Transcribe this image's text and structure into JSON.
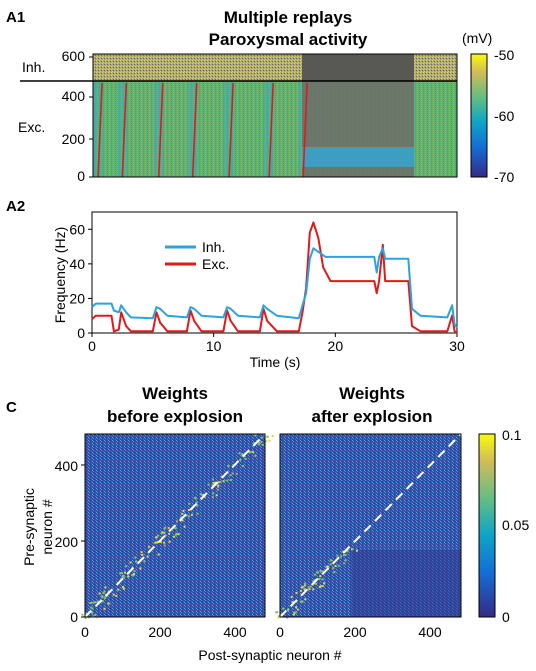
{
  "panelA1": {
    "label": "A1",
    "title1": "Multiple replays",
    "title2": "Paroxysmal activity",
    "inh_label": "Inh.",
    "exc_label": "Exc.",
    "y_ticks": [
      "0",
      "200",
      "400",
      "600"
    ],
    "colorbar": {
      "unit": "(mV)",
      "ticks": [
        "-50",
        "-60",
        "-70"
      ]
    }
  },
  "panelA2": {
    "label": "A2",
    "y_label": "Frequency (Hz)",
    "x_label": "Time (s)",
    "x_ticks": [
      "0",
      "10",
      "20",
      "30"
    ],
    "y_ticks": [
      "0",
      "20",
      "40",
      "60"
    ],
    "legend": [
      "Inh.",
      "Exc."
    ]
  },
  "panelC": {
    "label": "C",
    "left_title1": "Weights",
    "left_title2": "before explosion",
    "right_title1": "Weights",
    "right_title2": "after explosion",
    "y_label1": "Pre-synaptic",
    "y_label2": "neuron #",
    "x_label": "Post-synaptic neuron #",
    "y_ticks": [
      "0",
      "200",
      "400"
    ],
    "x_ticks": [
      "0",
      "200",
      "400"
    ],
    "colorbar_ticks": [
      "0.1",
      "0.05",
      "0"
    ]
  },
  "colors": {
    "inh": "#2aa3e0",
    "exc": "#e01a1a"
  },
  "chart_data": [
    {
      "type": "heatmap",
      "panel": "A1",
      "title": "Multiple replays Paroxysmal activity",
      "xlabel": "",
      "ylabel": "",
      "xlim": [
        0,
        30
      ],
      "ylim": [
        0,
        600
      ],
      "color_range_mV": [
        -70,
        -50
      ],
      "exc_burst_times_s": [
        0.5,
        2.5,
        5.5,
        8.3,
        11.3,
        14.6,
        17.4
      ],
      "paroxysm_s": [
        17.5,
        26.5
      ],
      "colormap": "parula"
    },
    {
      "type": "line",
      "panel": "A2",
      "xlabel": "Time (s)",
      "ylabel": "Frequency (Hz)",
      "xlim": [
        0,
        30
      ],
      "ylim": [
        0,
        70
      ],
      "series": [
        {
          "name": "Inh.",
          "color": "#2aa3e0",
          "points": [
            [
              0,
              15
            ],
            [
              0.3,
              17
            ],
            [
              1.6,
              17
            ],
            [
              1.8,
              13
            ],
            [
              2.2,
              12
            ],
            [
              2.4,
              16
            ],
            [
              2.8,
              12
            ],
            [
              3.2,
              9
            ],
            [
              5.0,
              8.5
            ],
            [
              5.3,
              15
            ],
            [
              5.6,
              14
            ],
            [
              6.2,
              10
            ],
            [
              7.8,
              9
            ],
            [
              8.1,
              15
            ],
            [
              8.4,
              14
            ],
            [
              9.0,
              10
            ],
            [
              10.8,
              9
            ],
            [
              11.1,
              15
            ],
            [
              11.4,
              14
            ],
            [
              12.0,
              10
            ],
            [
              13.8,
              9
            ],
            [
              14.1,
              16
            ],
            [
              14.4,
              14
            ],
            [
              15.2,
              10
            ],
            [
              17.0,
              8.5
            ],
            [
              17.3,
              16
            ],
            [
              17.6,
              23
            ],
            [
              17.9,
              43
            ],
            [
              18.2,
              49
            ],
            [
              18.6,
              47
            ],
            [
              19.2,
              44
            ],
            [
              20.0,
              44
            ],
            [
              23.2,
              44
            ],
            [
              23.4,
              35
            ],
            [
              23.6,
              44
            ],
            [
              23.9,
              49
            ],
            [
              24.1,
              43
            ],
            [
              26.0,
              43
            ],
            [
              26.3,
              14
            ],
            [
              27.0,
              10
            ],
            [
              29.2,
              9
            ],
            [
              29.6,
              16
            ],
            [
              29.8,
              5
            ],
            [
              30,
              3
            ]
          ]
        },
        {
          "name": "Exc.",
          "color": "#e01a1a",
          "points": [
            [
              0,
              8
            ],
            [
              0.3,
              10
            ],
            [
              1.6,
              10
            ],
            [
              1.8,
              1
            ],
            [
              2.2,
              2
            ],
            [
              2.4,
              12
            ],
            [
              2.8,
              4
            ],
            [
              3.2,
              1
            ],
            [
              5.0,
              1
            ],
            [
              5.3,
              12
            ],
            [
              5.6,
              6
            ],
            [
              6.2,
              1
            ],
            [
              7.8,
              1
            ],
            [
              8.1,
              13
            ],
            [
              8.4,
              7
            ],
            [
              9.0,
              1
            ],
            [
              10.8,
              1
            ],
            [
              11.1,
              13
            ],
            [
              11.4,
              7
            ],
            [
              12.0,
              1
            ],
            [
              13.8,
              1
            ],
            [
              14.1,
              14
            ],
            [
              14.4,
              7
            ],
            [
              15.2,
              1
            ],
            [
              17.0,
              1
            ],
            [
              17.3,
              12
            ],
            [
              17.6,
              26
            ],
            [
              17.9,
              58
            ],
            [
              18.2,
              64
            ],
            [
              18.6,
              55
            ],
            [
              19.0,
              38
            ],
            [
              19.6,
              30
            ],
            [
              23.2,
              30
            ],
            [
              23.4,
              23
            ],
            [
              23.6,
              30
            ],
            [
              23.9,
              51
            ],
            [
              24.1,
              30
            ],
            [
              26.0,
              30
            ],
            [
              26.3,
              4
            ],
            [
              27.0,
              1
            ],
            [
              29.2,
              1
            ],
            [
              29.6,
              10
            ],
            [
              29.8,
              1
            ],
            [
              30,
              0
            ]
          ]
        }
      ]
    },
    {
      "type": "heatmap",
      "panel": "C-left",
      "title": "Weights before explosion",
      "xlabel": "Post-synaptic neuron #",
      "ylabel": "Pre-synaptic neuron #",
      "xlim": [
        0,
        480
      ],
      "ylim": [
        0,
        480
      ],
      "color_range": [
        0,
        0.1
      ],
      "pattern": "diagonal band of strong weights"
    },
    {
      "type": "heatmap",
      "panel": "C-right",
      "title": "Weights after explosion",
      "xlabel": "Post-synaptic neuron #",
      "ylabel": "",
      "xlim": [
        0,
        480
      ],
      "ylim": [
        0,
        480
      ],
      "color_range": [
        0,
        0.1
      ],
      "pattern": "diagonal band only below ~180; uniform noise elsewhere"
    }
  ]
}
